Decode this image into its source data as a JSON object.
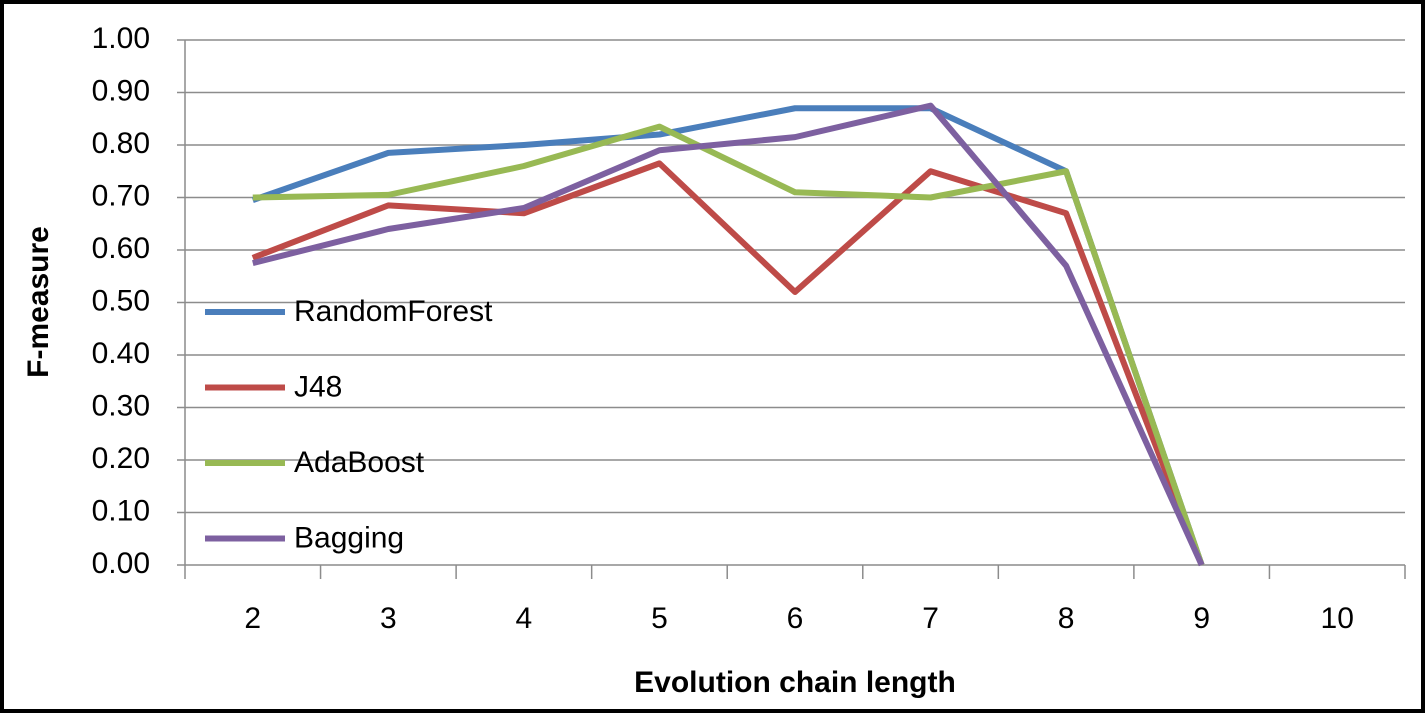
{
  "chart_data": {
    "type": "line",
    "x_label": "Evolution chain length",
    "y_label": "F-measure",
    "categories": [
      2,
      3,
      4,
      5,
      6,
      7,
      8,
      9,
      10
    ],
    "series": [
      {
        "name": "RandomForest",
        "color": "#4a7ebb",
        "values": [
          0.695,
          0.785,
          0.8,
          0.82,
          0.87,
          0.87,
          0.75,
          0,
          null
        ]
      },
      {
        "name": "J48",
        "color": "#be4b48",
        "values": [
          0.585,
          0.685,
          0.67,
          0.765,
          0.52,
          0.75,
          0.67,
          0,
          null
        ]
      },
      {
        "name": "AdaBoost",
        "color": "#98b954",
        "values": [
          0.7,
          0.705,
          0.76,
          0.835,
          0.71,
          0.7,
          0.75,
          0,
          null
        ]
      },
      {
        "name": "Bagging",
        "color": "#7d60a0",
        "values": [
          0.575,
          0.64,
          0.68,
          0.79,
          0.815,
          0.875,
          0.57,
          0,
          null
        ]
      }
    ],
    "ylim": [
      0,
      1
    ],
    "yticks": [
      {
        "value": 0,
        "label": "0.00"
      },
      {
        "value": 0.1,
        "label": "0.10"
      },
      {
        "value": 0.2,
        "label": "0.20"
      },
      {
        "value": 0.3,
        "label": "0.30"
      },
      {
        "value": 0.4,
        "label": "0.40"
      },
      {
        "value": 0.5,
        "label": "0.50"
      },
      {
        "value": 0.6,
        "label": "0.60"
      },
      {
        "value": 0.7,
        "label": "0.70"
      },
      {
        "value": 0.8,
        "label": "0.80"
      },
      {
        "value": 0.9,
        "label": "0.90"
      },
      {
        "value": 1,
        "label": "1.00"
      }
    ],
    "grid": true,
    "legend": "left"
  }
}
